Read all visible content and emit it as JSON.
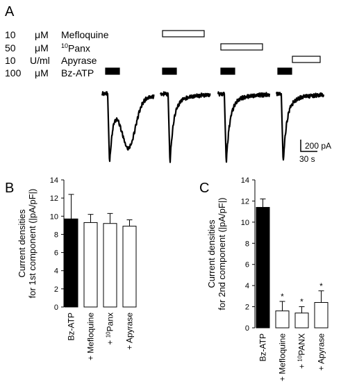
{
  "panel_a": {
    "letter": "A",
    "rows": [
      {
        "conc": "10",
        "unit": "μM",
        "name": "Mefloquine"
      },
      {
        "conc": "50",
        "unit": "μM",
        "name": "Panx",
        "sup": "10"
      },
      {
        "conc": "10",
        "unit": "U/ml",
        "name": "Apyrase"
      },
      {
        "conc": "100",
        "unit": "μM",
        "name": "Bz-ATP"
      }
    ],
    "scalebar": {
      "current": "200 pA",
      "time": "30 s"
    }
  },
  "chart_data": [
    {
      "panel": "B",
      "type": "bar",
      "ylabel": "Current  densities",
      "ylabel2": "for 1st component (|pA/pF|)",
      "ylim": [
        0,
        14
      ],
      "yticks": [
        "0",
        "2",
        "4",
        "6",
        "8",
        "10",
        "12",
        "14"
      ],
      "categories": [
        "Bz-ATP",
        "+ Mefloquine",
        "+ Panx",
        "+ Apyrase"
      ],
      "category_sup": [
        "",
        "",
        "10",
        ""
      ],
      "values": [
        9.7,
        9.3,
        9.2,
        8.9
      ],
      "errors": [
        2.7,
        0.9,
        1.1,
        0.7
      ],
      "fills": [
        "#000000",
        "#ffffff",
        "#ffffff",
        "#ffffff"
      ],
      "significance": [
        "",
        "",
        "",
        ""
      ]
    },
    {
      "panel": "C",
      "type": "bar",
      "ylabel": "Current  densities",
      "ylabel2": "for 2nd component (|pA/pF|)",
      "ylim": [
        0,
        14
      ],
      "yticks": [
        "0",
        "2",
        "4",
        "6",
        "8",
        "10",
        "12",
        "14"
      ],
      "categories": [
        "Bz-ATP",
        "+ Mefloquine",
        "+ PANX",
        "+ Apyrase"
      ],
      "category_sup": [
        "",
        "",
        "10",
        ""
      ],
      "values": [
        11.4,
        1.6,
        1.4,
        2.4
      ],
      "errors": [
        0.8,
        0.9,
        0.6,
        1.1
      ],
      "fills": [
        "#000000",
        "#ffffff",
        "#ffffff",
        "#ffffff"
      ],
      "significance": [
        "",
        "*",
        "*",
        "*"
      ]
    }
  ]
}
